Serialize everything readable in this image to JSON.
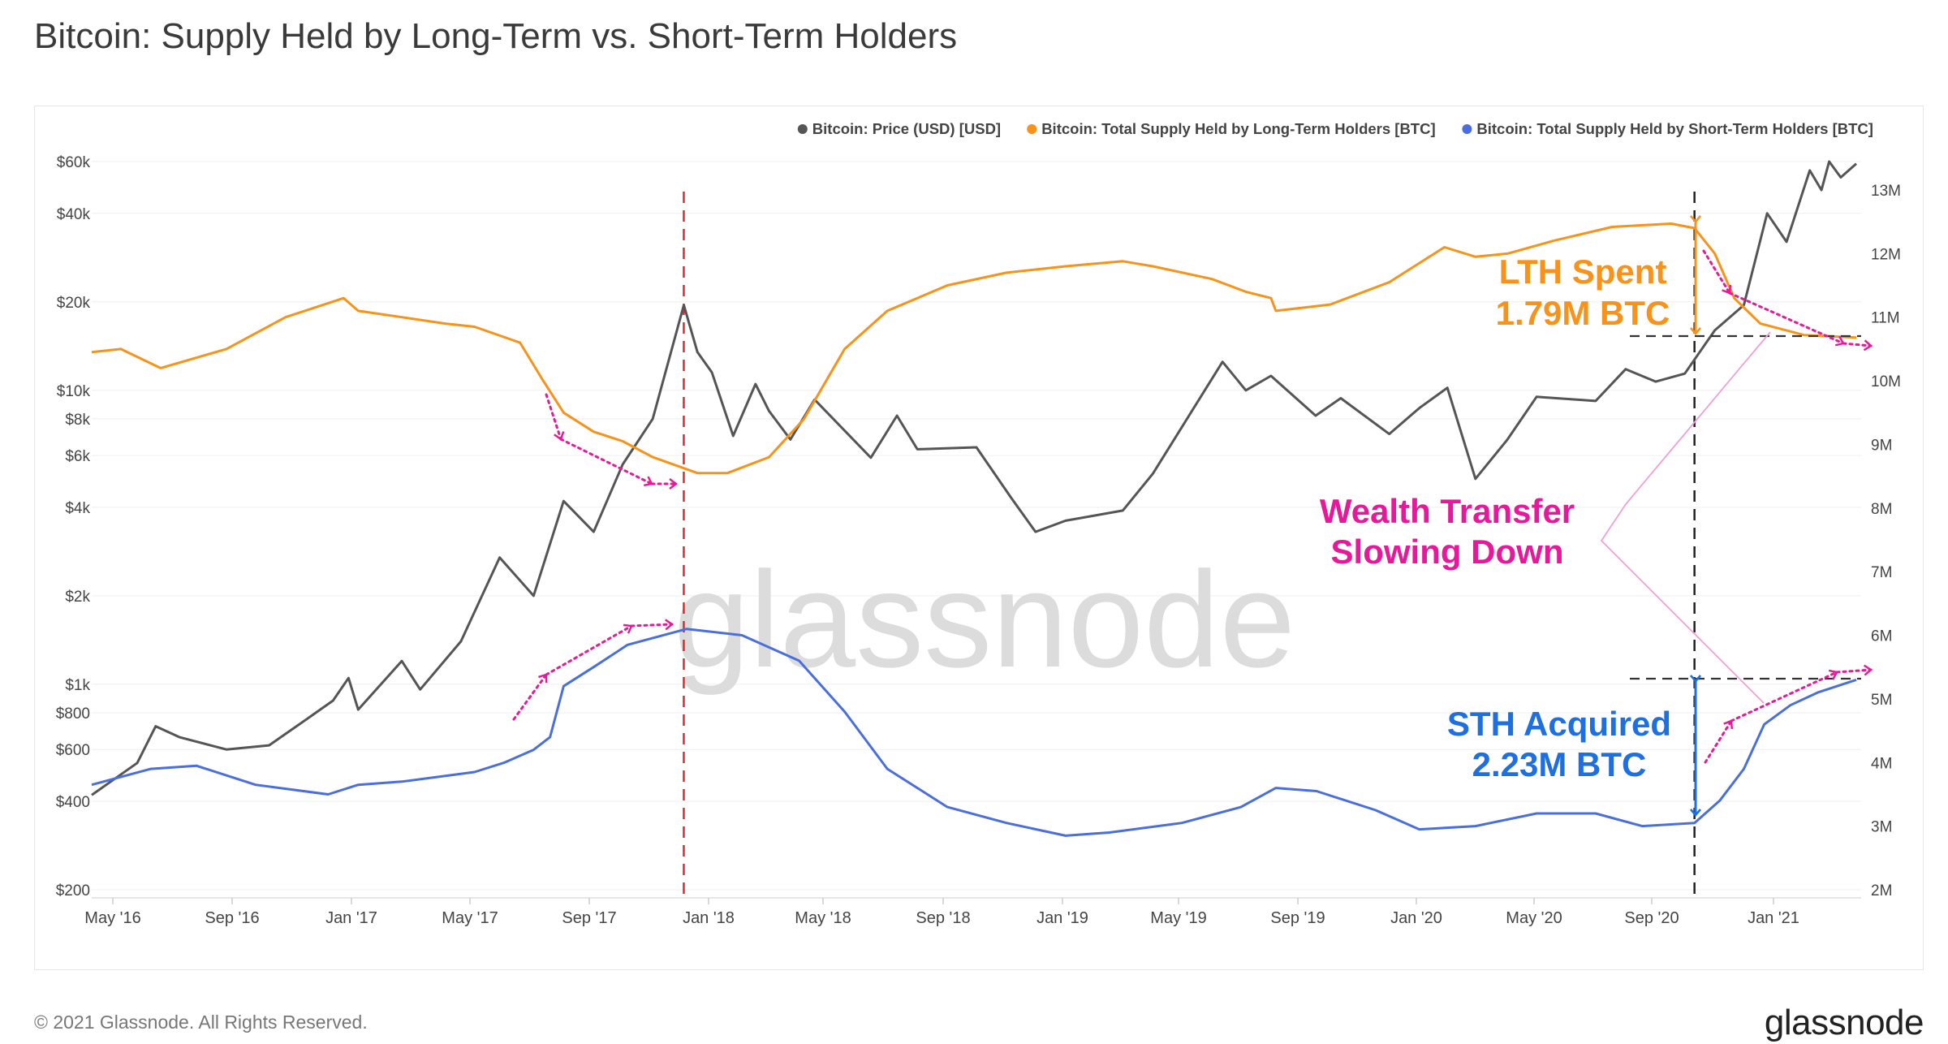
{
  "title": "Bitcoin: Supply Held by Long-Term vs. Short-Term Holders",
  "footer": {
    "copyright": "© 2021 Glassnode. All Rights Reserved.",
    "logo": "glassnode"
  },
  "watermark": "glassnode",
  "annotations": {
    "lth": [
      "LTH Spent",
      "1.79M BTC"
    ],
    "sth": [
      "STH Acquired",
      "2.23M BTC"
    ],
    "wealth": [
      "Wealth Transfer",
      "Slowing Down"
    ]
  },
  "colors": {
    "price": "#555555",
    "lth": "#f7931a",
    "sth": "#4a6fdc",
    "accent": "#e6199b",
    "vline": "#e0282e"
  },
  "chart_data": {
    "type": "line",
    "x_ticks": [
      "May '16",
      "Sep '16",
      "Jan '17",
      "May '17",
      "Sep '17",
      "Jan '18",
      "May '18",
      "Sep '18",
      "Jan '19",
      "May '19",
      "Sep '19",
      "Jan '20",
      "May '20",
      "Sep '20",
      "Jan '21"
    ],
    "x_range": [
      "2016-04-15",
      "2021-04-15"
    ],
    "y_left": {
      "scale": "log",
      "ticks": [
        "$60k",
        "$40k",
        "$20k",
        "$10k",
        "$8k",
        "$6k",
        "$4k",
        "$2k",
        "$1k",
        "$800",
        "$600",
        "$400",
        "$200"
      ],
      "tick_values": [
        60000,
        40000,
        20000,
        10000,
        8000,
        6000,
        4000,
        2000,
        1000,
        800,
        600,
        400,
        200
      ],
      "range": [
        200,
        60000
      ]
    },
    "y_right": {
      "scale": "linear",
      "ticks": [
        "13M",
        "12M",
        "11M",
        "10M",
        "9M",
        "8M",
        "7M",
        "6M",
        "5M",
        "4M",
        "3M",
        "2M"
      ],
      "tick_values": [
        13,
        12,
        11,
        10,
        9,
        8,
        7,
        6,
        5,
        4,
        3,
        2
      ],
      "range": [
        2,
        13.3
      ],
      "unit": "M"
    },
    "legend_position": "top-right",
    "series": [
      {
        "name": "Bitcoin: Price (USD) [USD]",
        "axis": "left",
        "points": [
          [
            "2016-04-15",
            420
          ],
          [
            "2016-06-01",
            540
          ],
          [
            "2016-06-20",
            720
          ],
          [
            "2016-07-15",
            660
          ],
          [
            "2016-09-01",
            600
          ],
          [
            "2016-10-15",
            620
          ],
          [
            "2016-11-15",
            730
          ],
          [
            "2016-12-20",
            880
          ],
          [
            "2017-01-05",
            1050
          ],
          [
            "2017-01-15",
            820
          ],
          [
            "2017-03-01",
            1200
          ],
          [
            "2017-03-20",
            960
          ],
          [
            "2017-05-01",
            1400
          ],
          [
            "2017-06-10",
            2700
          ],
          [
            "2017-07-15",
            2000
          ],
          [
            "2017-08-15",
            4200
          ],
          [
            "2017-09-15",
            3300
          ],
          [
            "2017-10-15",
            5600
          ],
          [
            "2017-11-15",
            8000
          ],
          [
            "2017-12-17",
            19500
          ],
          [
            "2017-12-31",
            13500
          ],
          [
            "2018-01-15",
            11500
          ],
          [
            "2018-02-06",
            7000
          ],
          [
            "2018-03-01",
            10500
          ],
          [
            "2018-03-15",
            8500
          ],
          [
            "2018-04-06",
            6800
          ],
          [
            "2018-05-01",
            9300
          ],
          [
            "2018-06-28",
            5900
          ],
          [
            "2018-07-25",
            8200
          ],
          [
            "2018-08-15",
            6300
          ],
          [
            "2018-10-15",
            6400
          ],
          [
            "2018-11-20",
            4300
          ],
          [
            "2018-12-15",
            3300
          ],
          [
            "2019-01-15",
            3600
          ],
          [
            "2019-03-15",
            3900
          ],
          [
            "2019-04-15",
            5200
          ],
          [
            "2019-06-26",
            12500
          ],
          [
            "2019-07-20",
            10000
          ],
          [
            "2019-08-15",
            11200
          ],
          [
            "2019-09-30",
            8200
          ],
          [
            "2019-10-26",
            9400
          ],
          [
            "2019-12-15",
            7100
          ],
          [
            "2020-01-15",
            8700
          ],
          [
            "2020-02-13",
            10200
          ],
          [
            "2020-03-13",
            5000
          ],
          [
            "2020-04-15",
            6800
          ],
          [
            "2020-05-15",
            9500
          ],
          [
            "2020-07-15",
            9200
          ],
          [
            "2020-08-15",
            11800
          ],
          [
            "2020-09-15",
            10700
          ],
          [
            "2020-10-15",
            11400
          ],
          [
            "2020-11-15",
            16000
          ],
          [
            "2020-12-15",
            19500
          ],
          [
            "2021-01-08",
            40000
          ],
          [
            "2021-01-28",
            32000
          ],
          [
            "2021-02-21",
            56000
          ],
          [
            "2021-03-05",
            48000
          ],
          [
            "2021-03-13",
            60000
          ],
          [
            "2021-03-25",
            53000
          ],
          [
            "2021-04-10",
            59000
          ]
        ]
      },
      {
        "name": "Bitcoin: Total Supply Held by Long-Term Holders [BTC]",
        "axis": "right",
        "points": [
          [
            "2016-04-15",
            10.45
          ],
          [
            "2016-05-15",
            10.5
          ],
          [
            "2016-06-25",
            10.2
          ],
          [
            "2016-09-01",
            10.5
          ],
          [
            "2016-11-01",
            11.0
          ],
          [
            "2016-12-31",
            11.3
          ],
          [
            "2017-01-15",
            11.1
          ],
          [
            "2017-03-01",
            11.0
          ],
          [
            "2017-04-15",
            10.9
          ],
          [
            "2017-05-15",
            10.85
          ],
          [
            "2017-07-01",
            10.6
          ],
          [
            "2017-07-25",
            10.0
          ],
          [
            "2017-08-15",
            9.5
          ],
          [
            "2017-09-15",
            9.2
          ],
          [
            "2017-10-15",
            9.05
          ],
          [
            "2017-11-15",
            8.8
          ],
          [
            "2017-12-31",
            8.55
          ],
          [
            "2018-01-31",
            8.55
          ],
          [
            "2018-03-15",
            8.8
          ],
          [
            "2018-04-20",
            9.4
          ],
          [
            "2018-06-01",
            10.5
          ],
          [
            "2018-07-15",
            11.1
          ],
          [
            "2018-09-15",
            11.5
          ],
          [
            "2018-11-15",
            11.7
          ],
          [
            "2019-01-15",
            11.8
          ],
          [
            "2019-03-15",
            11.88
          ],
          [
            "2019-04-15",
            11.8
          ],
          [
            "2019-06-15",
            11.6
          ],
          [
            "2019-07-20",
            11.4
          ],
          [
            "2019-08-15",
            11.3
          ],
          [
            "2019-08-20",
            11.1
          ],
          [
            "2019-10-15",
            11.2
          ],
          [
            "2019-12-15",
            11.55
          ],
          [
            "2020-02-10",
            12.1
          ],
          [
            "2020-03-13",
            11.95
          ],
          [
            "2020-04-15",
            12.0
          ],
          [
            "2020-06-01",
            12.2
          ],
          [
            "2020-08-01",
            12.42
          ],
          [
            "2020-10-01",
            12.47
          ],
          [
            "2020-10-25",
            12.4
          ],
          [
            "2020-11-15",
            12.0
          ],
          [
            "2020-12-05",
            11.3
          ],
          [
            "2021-01-01",
            10.9
          ],
          [
            "2021-02-15",
            10.72
          ],
          [
            "2021-04-10",
            10.68
          ]
        ]
      },
      {
        "name": "Bitcoin: Total Supply Held by Short-Term Holders [BTC]",
        "axis": "right",
        "points": [
          [
            "2016-04-15",
            3.65
          ],
          [
            "2016-06-15",
            3.9
          ],
          [
            "2016-08-01",
            3.95
          ],
          [
            "2016-10-01",
            3.65
          ],
          [
            "2016-12-15",
            3.5
          ],
          [
            "2017-01-15",
            3.65
          ],
          [
            "2017-03-01",
            3.7
          ],
          [
            "2017-05-15",
            3.85
          ],
          [
            "2017-06-15",
            4.0
          ],
          [
            "2017-07-15",
            4.2
          ],
          [
            "2017-08-01",
            4.4
          ],
          [
            "2017-08-15",
            5.2
          ],
          [
            "2017-09-15",
            5.5
          ],
          [
            "2017-10-20",
            5.85
          ],
          [
            "2017-12-20",
            6.1
          ],
          [
            "2018-02-15",
            6.0
          ],
          [
            "2018-04-15",
            5.6
          ],
          [
            "2018-06-01",
            4.8
          ],
          [
            "2018-07-15",
            3.9
          ],
          [
            "2018-09-15",
            3.3
          ],
          [
            "2018-11-15",
            3.05
          ],
          [
            "2019-01-15",
            2.85
          ],
          [
            "2019-03-01",
            2.9
          ],
          [
            "2019-05-15",
            3.05
          ],
          [
            "2019-07-15",
            3.3
          ],
          [
            "2019-08-20",
            3.6
          ],
          [
            "2019-10-01",
            3.55
          ],
          [
            "2019-12-01",
            3.25
          ],
          [
            "2020-01-15",
            2.95
          ],
          [
            "2020-03-13",
            3.0
          ],
          [
            "2020-05-15",
            3.2
          ],
          [
            "2020-07-15",
            3.2
          ],
          [
            "2020-09-01",
            3.0
          ],
          [
            "2020-10-25",
            3.05
          ],
          [
            "2020-11-20",
            3.4
          ],
          [
            "2020-12-15",
            3.9
          ],
          [
            "2021-01-05",
            4.6
          ],
          [
            "2021-02-01",
            4.9
          ],
          [
            "2021-03-01",
            5.1
          ],
          [
            "2021-04-10",
            5.3
          ]
        ]
      }
    ],
    "reference_lines": [
      {
        "type": "vertical",
        "x": "2017-12-17",
        "style": "dashed",
        "color": "#e0282e"
      },
      {
        "type": "vertical",
        "x": "2020-10-25",
        "style": "dashed",
        "color": "#222222"
      }
    ]
  }
}
